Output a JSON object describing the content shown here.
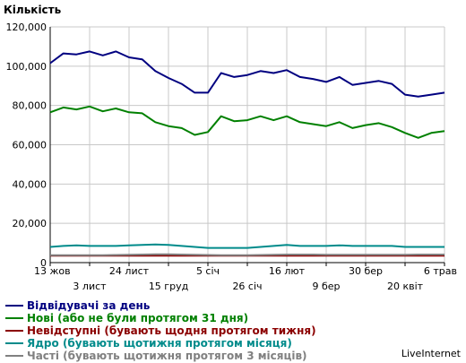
{
  "chart_data": {
    "type": "line",
    "ylabel": "Кількість",
    "ylim": [
      0,
      120000
    ],
    "yticks": [
      "0",
      "20,000",
      "40,000",
      "60,000",
      "80,000",
      "100,000",
      "120,000"
    ],
    "grid": true,
    "legend_position": "bottom",
    "x_labels_row1": [
      "13 жов",
      "24 лист",
      "5 січ",
      "16 лют",
      "30 бер",
      "6 трав"
    ],
    "x_labels_row2": [
      "3 лист",
      "15 груд",
      "26 січ",
      "9 бер",
      "20 квіт"
    ],
    "series": [
      {
        "name": "Відвідувачі за день",
        "color": "#000080",
        "values": [
          101500,
          106500,
          106000,
          107500,
          105500,
          107500,
          104500,
          103500,
          97500,
          94000,
          91000,
          86500,
          86500,
          96500,
          94500,
          95500,
          97500,
          96500,
          98000,
          94500,
          93500,
          92000,
          94500,
          90500,
          91500,
          92500,
          91000,
          85500,
          84500,
          85500,
          86500
        ]
      },
      {
        "name": "Нові (або не були протягом 31 дня)",
        "color": "#008000",
        "values": [
          76500,
          79000,
          78000,
          79500,
          77000,
          78500,
          76500,
          76000,
          71500,
          69500,
          68500,
          65000,
          66500,
          74500,
          72000,
          72500,
          74500,
          72500,
          74500,
          71500,
          70500,
          69500,
          71500,
          68500,
          70000,
          71000,
          69000,
          66000,
          63500,
          66000,
          67000
        ]
      },
      {
        "name": "Невідступні (бувають щодня протягом тижня)",
        "color": "#8b0000",
        "values": [
          3500,
          3500,
          3500,
          3500,
          3500,
          3500,
          3500,
          3500,
          3500,
          3500,
          3500,
          3500,
          3500,
          3500,
          3500,
          3500,
          3500,
          3500,
          3500,
          3500,
          3500,
          3500,
          3500,
          3500,
          3500,
          3500,
          3500,
          3500,
          3500,
          3500,
          3500
        ]
      },
      {
        "name": "Ядро (бувають щотижня протягом місяця)",
        "color": "#008b8b",
        "values": [
          8000,
          8500,
          8800,
          8500,
          8500,
          8500,
          8800,
          9000,
          9200,
          9000,
          8500,
          8000,
          7500,
          7500,
          7500,
          7500,
          8000,
          8500,
          9000,
          8500,
          8500,
          8500,
          8800,
          8500,
          8500,
          8500,
          8500,
          8000,
          8000,
          8000,
          8000
        ]
      },
      {
        "name": "Часті (бувають щотижня протягом 3 місяців)",
        "color": "#808080",
        "values": [
          3800,
          3800,
          3800,
          3800,
          3800,
          3900,
          4000,
          4100,
          4200,
          4200,
          4100,
          4000,
          3900,
          3800,
          3800,
          3800,
          3900,
          4000,
          4100,
          4100,
          4100,
          4000,
          4000,
          4000,
          4000,
          4000,
          4000,
          4000,
          4100,
          4100,
          4100
        ]
      }
    ]
  },
  "credit": "LiveInternet"
}
